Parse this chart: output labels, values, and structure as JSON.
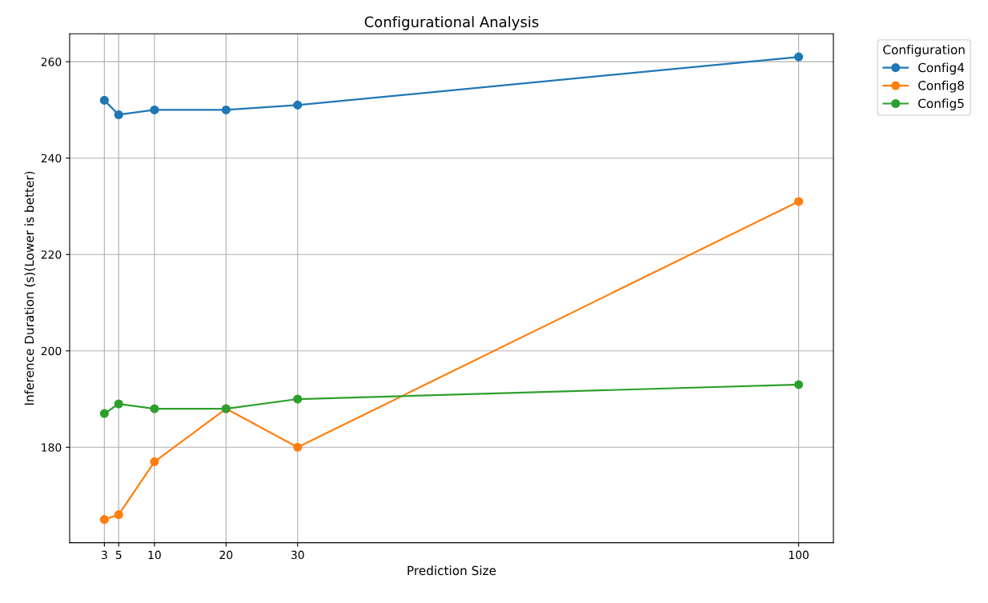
{
  "chart_data": {
    "type": "line",
    "title": "Configurational Analysis",
    "xlabel": "Prediction Size",
    "ylabel": "Inference Duration (s)(Lower is better)",
    "legend_title": "Configuration",
    "x": [
      3,
      5,
      10,
      20,
      30,
      100
    ],
    "series": [
      {
        "name": "Config4",
        "color": "#1f77b4",
        "values": [
          252,
          249,
          250,
          250,
          251,
          261
        ]
      },
      {
        "name": "Config8",
        "color": "#ff7f0e",
        "values": [
          165,
          166,
          177,
          188,
          180,
          231
        ]
      },
      {
        "name": "Config5",
        "color": "#2ca02c",
        "values": [
          187,
          189,
          188,
          188,
          190,
          193
        ]
      }
    ],
    "xlim": [
      -1.85,
      104.85
    ],
    "ylim": [
      160.2,
      265.8
    ],
    "xticks": [
      3,
      5,
      10,
      20,
      30,
      100
    ],
    "yticks": [
      180,
      200,
      220,
      240,
      260
    ],
    "grid": true,
    "legend": "top right",
    "marker": "circle",
    "line_style": "solid"
  }
}
